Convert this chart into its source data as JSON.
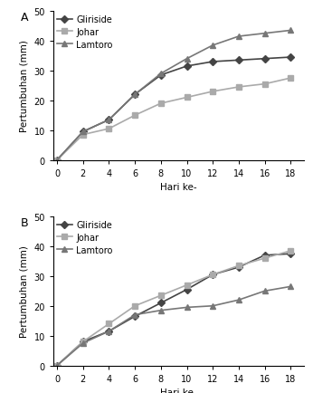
{
  "x": [
    0,
    2,
    4,
    6,
    8,
    10,
    12,
    14,
    16,
    18
  ],
  "chart_A": {
    "Gliriside": [
      0,
      9.5,
      13.5,
      22,
      28.5,
      31.5,
      33,
      33.5,
      34,
      34.5
    ],
    "Johar": [
      0,
      8.5,
      10.5,
      15,
      19,
      21,
      23,
      24.5,
      25.5,
      27.5
    ],
    "Lamtoro": [
      0,
      9.5,
      13.5,
      22,
      29,
      34,
      38.5,
      41.5,
      42.5,
      43.5
    ]
  },
  "chart_B": {
    "Gliriside": [
      0,
      8,
      11.5,
      16.5,
      21,
      25.5,
      30.5,
      33,
      37,
      37.5
    ],
    "Johar": [
      0,
      8,
      14,
      20,
      23.5,
      27,
      30.5,
      33.5,
      36,
      38.5
    ],
    "Lamtoro": [
      0,
      7.5,
      11.5,
      17,
      18.5,
      19.5,
      20,
      22,
      25,
      26.5
    ]
  },
  "colors": {
    "Gliriside": "#444444",
    "Johar": "#aaaaaa",
    "Lamtoro": "#777777"
  },
  "markers": {
    "Gliriside": "D",
    "Johar": "s",
    "Lamtoro": "^"
  },
  "ylabel": "Pertumbuhan (mm)",
  "xlabel": "Hari ke-",
  "ylim": [
    0,
    50
  ],
  "yticks": [
    0,
    10,
    20,
    30,
    40,
    50
  ],
  "xticks": [
    0,
    2,
    4,
    6,
    8,
    10,
    12,
    14,
    16,
    18
  ],
  "label_A": "A",
  "label_B": "B",
  "legend_order": [
    "Gliriside",
    "Johar",
    "Lamtoro"
  ],
  "fontsize_label": 7.5,
  "fontsize_tick": 7,
  "fontsize_legend": 7,
  "fontsize_panel": 9,
  "markersize": 4,
  "linewidth": 1.2
}
